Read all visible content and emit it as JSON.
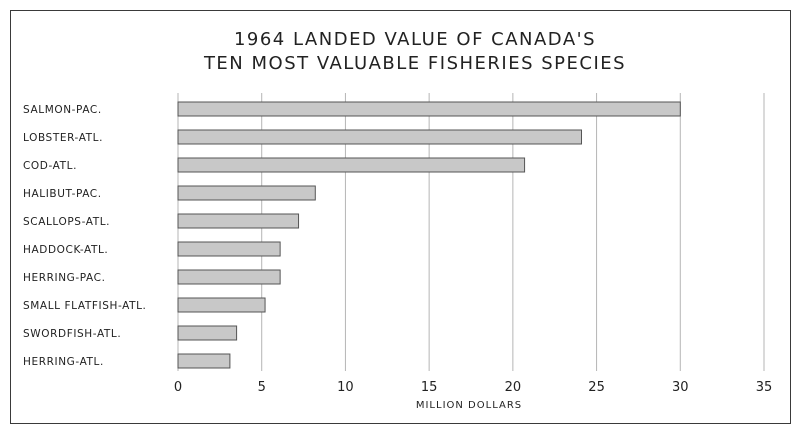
{
  "chart_data": {
    "type": "bar",
    "orientation": "horizontal",
    "title": "1964 LANDED VALUE OF CANADA'S",
    "subtitle": "TEN MOST VALUABLE FISHERIES SPECIES",
    "xlabel": "MILLION DOLLARS",
    "ylabel": "",
    "categories": [
      "SALMON-PAC.",
      "LOBSTER-ATL.",
      "COD-ATL.",
      "HALIBUT-PAC.",
      "SCALLOPS-ATL.",
      "HADDOCK-ATL.",
      "HERRING-PAC.",
      "SMALL FLATFISH-ATL.",
      "SWORDFISH-ATL.",
      "HERRING-ATL."
    ],
    "values": [
      30.0,
      24.1,
      20.7,
      8.2,
      7.2,
      6.1,
      6.1,
      5.2,
      3.5,
      3.1
    ],
    "xlim": [
      0,
      35
    ],
    "xticks": [
      "0",
      "5",
      "10",
      "15",
      "20",
      "25",
      "30",
      "35"
    ],
    "grid": "vertical",
    "legend": "none",
    "colors": {
      "bar_fill": "#c8c8c8",
      "bar_stroke": "#555555",
      "grid": "#b5b5b5",
      "text": "#222222"
    }
  }
}
